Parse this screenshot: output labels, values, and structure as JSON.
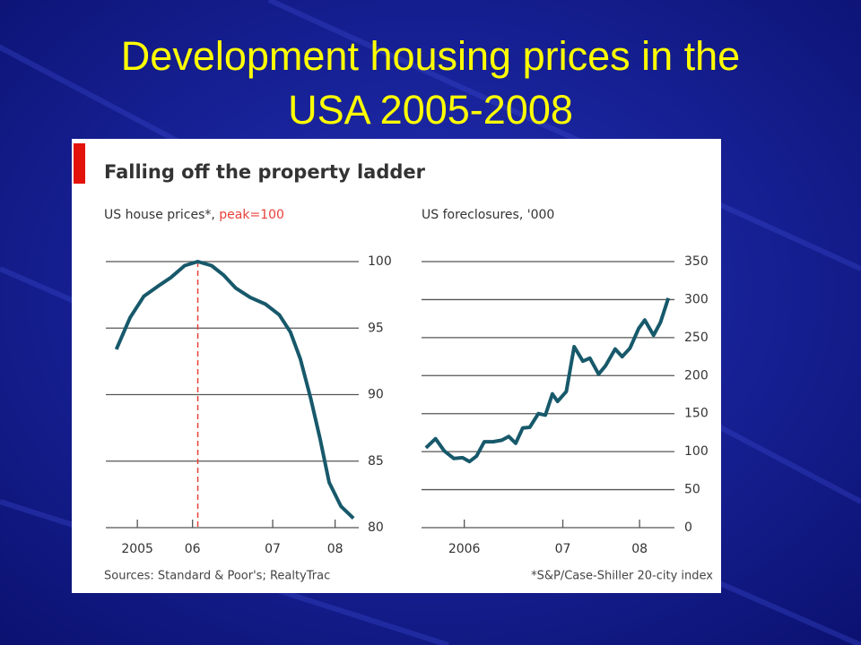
{
  "slide_title": "Development housing prices in the USA 2005-2008",
  "heading": "Falling off the property ladder",
  "sources": "Sources: Standard & Poor's; RealtyTrac",
  "footnote": "*S&P/Case-Shiller 20-city index",
  "chart_data": [
    {
      "type": "line",
      "title": "US house prices*,",
      "title_highlight": "peak=100",
      "color": "#17596b",
      "highlight_color": "#e8413a",
      "peak_x": 2006.4,
      "x": [
        2005.16,
        2005.37,
        2005.58,
        2005.78,
        2005.99,
        2006.2,
        2006.4,
        2006.61,
        2006.79,
        2006.98,
        2007.2,
        2007.43,
        2007.64,
        2007.81,
        2007.96,
        2008.12,
        2008.26,
        2008.4,
        2008.58,
        2008.77
      ],
      "series": [
        {
          "name": "US house prices",
          "color": "#17596b",
          "values": [
            93.4,
            95.8,
            97.4,
            98.1,
            98.8,
            99.7,
            100,
            99.7,
            99.0,
            98.0,
            97.3,
            96.8,
            96.0,
            94.7,
            92.7,
            89.7,
            86.7,
            83.4,
            81.6,
            80.7
          ]
        }
      ],
      "xlim": [
        2005.0,
        2008.85
      ],
      "xticks": [
        {
          "value": 2005.48,
          "label": "2005"
        },
        {
          "value": 2006.32,
          "label": "06"
        },
        {
          "value": 2007.54,
          "label": "07"
        },
        {
          "value": 2008.49,
          "label": "08"
        }
      ],
      "ylim": [
        80,
        100
      ],
      "yticks": [
        80,
        85,
        90,
        95,
        100
      ],
      "grid": true
    },
    {
      "type": "line",
      "title": "US foreclosures, '000",
      "color": "#17596b",
      "x": [
        2006.05,
        2006.16,
        2006.26,
        2006.37,
        2006.47,
        2006.55,
        2006.63,
        2006.72,
        2006.82,
        2006.92,
        2007.0,
        2007.08,
        2007.16,
        2007.24,
        2007.34,
        2007.42,
        2007.5,
        2007.56,
        2007.66,
        2007.75,
        2007.85,
        2007.93,
        2008.03,
        2008.11,
        2008.22,
        2008.3,
        2008.39,
        2008.49,
        2008.56,
        2008.66,
        2008.74,
        2008.83
      ],
      "series": [
        {
          "name": "US foreclosures",
          "color": "#17596b",
          "values": [
            105,
            117,
            101,
            91,
            92,
            87,
            94,
            113,
            113,
            115,
            120,
            111,
            131,
            132,
            150,
            148,
            176,
            166,
            179,
            238,
            219,
            223,
            202,
            213,
            235,
            225,
            236,
            262,
            273,
            253,
            270,
            302
          ]
        }
      ],
      "xlim": [
        2006.0,
        2008.9
      ],
      "xticks": [
        {
          "value": 2006.49,
          "label": "2006"
        },
        {
          "value": 2007.62,
          "label": "07"
        },
        {
          "value": 2008.5,
          "label": "08"
        }
      ],
      "ylim": [
        0,
        350
      ],
      "yticks": [
        0,
        50,
        100,
        150,
        200,
        250,
        300,
        350
      ],
      "grid": true
    }
  ]
}
